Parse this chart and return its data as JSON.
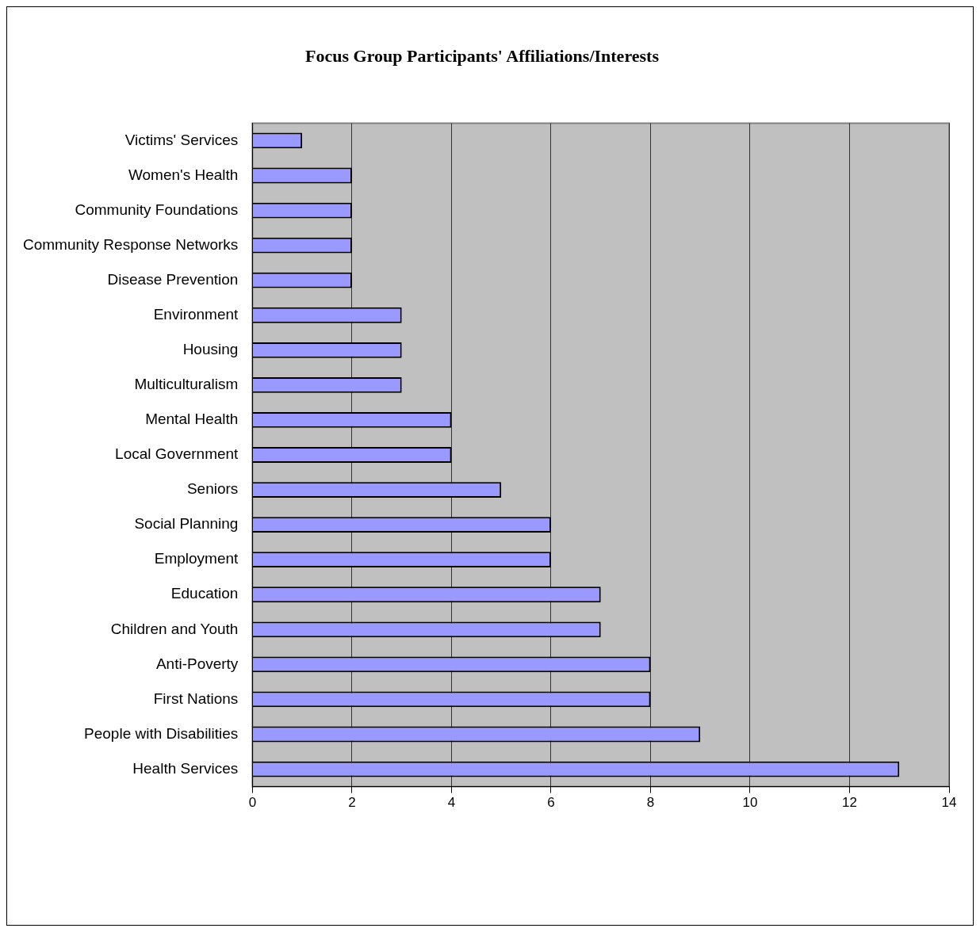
{
  "chart_data": {
    "type": "bar",
    "orientation": "horizontal",
    "title": "Focus Group Participants' Affiliations/Interests",
    "categories": [
      "Victims' Services",
      "Women's Health",
      "Community Foundations",
      "Community Response Networks",
      "Disease Prevention",
      "Environment",
      "Housing",
      "Multiculturalism",
      "Mental Health",
      "Local Government",
      "Seniors",
      "Social Planning",
      "Employment",
      "Education",
      "Children and Youth",
      "Anti-Poverty",
      "First Nations",
      "People with Disabilities",
      "Health Services"
    ],
    "values": [
      1,
      2,
      2,
      2,
      2,
      3,
      3,
      3,
      4,
      4,
      5,
      6,
      6,
      7,
      7,
      8,
      8,
      9,
      13
    ],
    "color": "#9999ff",
    "xlim": [
      0,
      14
    ],
    "xticks": [
      0,
      2,
      4,
      6,
      8,
      10,
      12,
      14
    ],
    "grid": "x",
    "legend": false
  }
}
